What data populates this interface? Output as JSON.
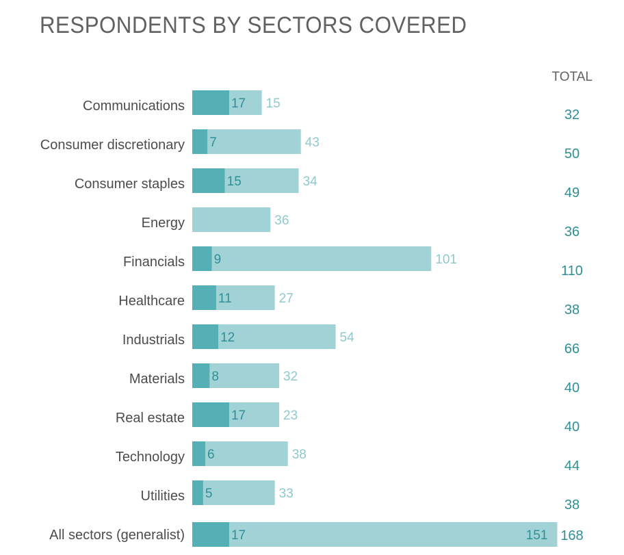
{
  "title": "RESPONDENTS BY SECTORS COVERED",
  "total_header": "TOTAL",
  "colors": {
    "dark": "#54b0b5",
    "light": "#a1d3d6",
    "dark_text": "#2f8f96",
    "light_text": "#8fc9cd"
  },
  "chart_data": {
    "type": "bar",
    "orientation": "horizontal",
    "stacked": true,
    "categories": [
      "Communications",
      "Consumer discretionary",
      "Consumer staples",
      "Energy",
      "Financials",
      "Healthcare",
      "Industrials",
      "Materials",
      "Real estate",
      "Technology",
      "Utilities",
      "All sectors (generalist)"
    ],
    "series": [
      {
        "values": [
          17,
          7,
          15,
          0,
          9,
          11,
          12,
          8,
          17,
          6,
          5,
          17
        ]
      },
      {
        "values": [
          15,
          43,
          34,
          36,
          101,
          27,
          54,
          32,
          23,
          38,
          33,
          151
        ]
      }
    ],
    "totals": [
      32,
      50,
      49,
      36,
      110,
      38,
      66,
      40,
      40,
      44,
      38,
      168
    ],
    "title": "RESPONDENTS BY SECTORS COVERED"
  }
}
